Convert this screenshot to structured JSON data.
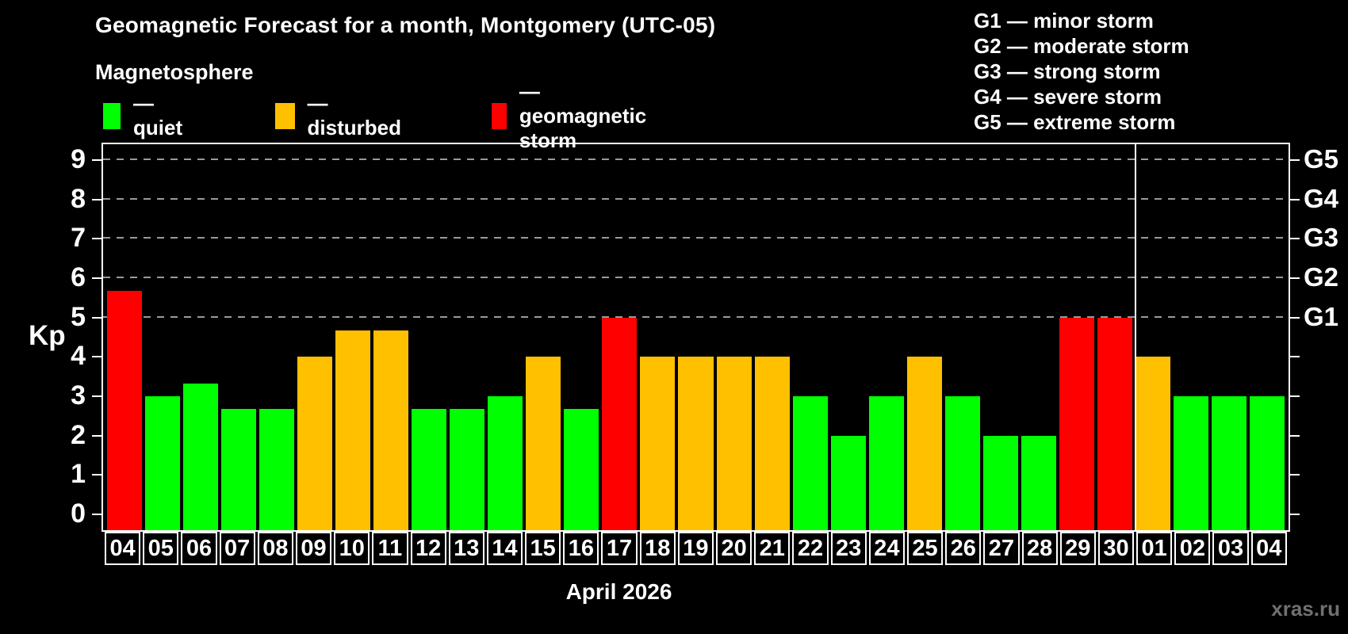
{
  "header": {
    "title": "Geomagnetic Forecast for a month, Montgomery (UTC-05)",
    "subtitle": "Magnetosphere"
  },
  "colors": {
    "quiet": "#00ff00",
    "disturbed": "#ffc000",
    "storm": "#ff0000",
    "axis": "#ffffff",
    "grid": "#9a9a9a",
    "background": "#000000",
    "watermark": "#707070"
  },
  "legend": {
    "items": [
      {
        "status": "quiet",
        "label": "— quiet"
      },
      {
        "status": "disturbed",
        "label": "— disturbed"
      },
      {
        "status": "storm",
        "label": "— geomagnetic storm"
      }
    ]
  },
  "g_legend": {
    "lines": [
      "G1 — minor storm",
      "G2 — moderate storm",
      "G3 — strong storm",
      "G4 — severe storm",
      "G5 — extreme storm"
    ]
  },
  "footer": {
    "month_label": "April 2026",
    "watermark": "xras.ru"
  },
  "chart_data": {
    "type": "bar",
    "title": "Geomagnetic Forecast for a month, Montgomery (UTC-05)",
    "xlabel": "April 2026",
    "ylabel": "Kp",
    "ylim": [
      -0.4,
      9.4
    ],
    "yticks": [
      0,
      1,
      2,
      3,
      4,
      5,
      6,
      7,
      8,
      9
    ],
    "gridlines": [
      5,
      6,
      7,
      8,
      9
    ],
    "grid_style": "dashed",
    "legend_position": "top",
    "right_axis_labels": [
      {
        "value": 5,
        "label": "G1"
      },
      {
        "value": 6,
        "label": "G2"
      },
      {
        "value": 7,
        "label": "G3"
      },
      {
        "value": 8,
        "label": "G4"
      },
      {
        "value": 9,
        "label": "G5"
      }
    ],
    "month_separator_after_index": 26,
    "bars": [
      {
        "day": "04",
        "kp": 5.67,
        "status": "storm"
      },
      {
        "day": "05",
        "kp": 3.0,
        "status": "quiet"
      },
      {
        "day": "06",
        "kp": 3.33,
        "status": "quiet"
      },
      {
        "day": "07",
        "kp": 2.67,
        "status": "quiet"
      },
      {
        "day": "08",
        "kp": 2.67,
        "status": "quiet"
      },
      {
        "day": "09",
        "kp": 4.0,
        "status": "disturbed"
      },
      {
        "day": "10",
        "kp": 4.67,
        "status": "disturbed"
      },
      {
        "day": "11",
        "kp": 4.67,
        "status": "disturbed"
      },
      {
        "day": "12",
        "kp": 2.67,
        "status": "quiet"
      },
      {
        "day": "13",
        "kp": 2.67,
        "status": "quiet"
      },
      {
        "day": "14",
        "kp": 3.0,
        "status": "quiet"
      },
      {
        "day": "15",
        "kp": 4.0,
        "status": "disturbed"
      },
      {
        "day": "16",
        "kp": 2.67,
        "status": "quiet"
      },
      {
        "day": "17",
        "kp": 5.0,
        "status": "storm"
      },
      {
        "day": "18",
        "kp": 4.0,
        "status": "disturbed"
      },
      {
        "day": "19",
        "kp": 4.0,
        "status": "disturbed"
      },
      {
        "day": "20",
        "kp": 4.0,
        "status": "disturbed"
      },
      {
        "day": "21",
        "kp": 4.0,
        "status": "disturbed"
      },
      {
        "day": "22",
        "kp": 3.0,
        "status": "quiet"
      },
      {
        "day": "23",
        "kp": 2.0,
        "status": "quiet"
      },
      {
        "day": "24",
        "kp": 3.0,
        "status": "quiet"
      },
      {
        "day": "25",
        "kp": 4.0,
        "status": "disturbed"
      },
      {
        "day": "26",
        "kp": 3.0,
        "status": "quiet"
      },
      {
        "day": "27",
        "kp": 2.0,
        "status": "quiet"
      },
      {
        "day": "28",
        "kp": 2.0,
        "status": "quiet"
      },
      {
        "day": "29",
        "kp": 5.0,
        "status": "storm"
      },
      {
        "day": "30",
        "kp": 5.0,
        "status": "storm"
      },
      {
        "day": "01",
        "kp": 4.0,
        "status": "disturbed"
      },
      {
        "day": "02",
        "kp": 3.0,
        "status": "quiet"
      },
      {
        "day": "03",
        "kp": 3.0,
        "status": "quiet"
      },
      {
        "day": "04",
        "kp": 3.0,
        "status": "quiet"
      }
    ]
  }
}
